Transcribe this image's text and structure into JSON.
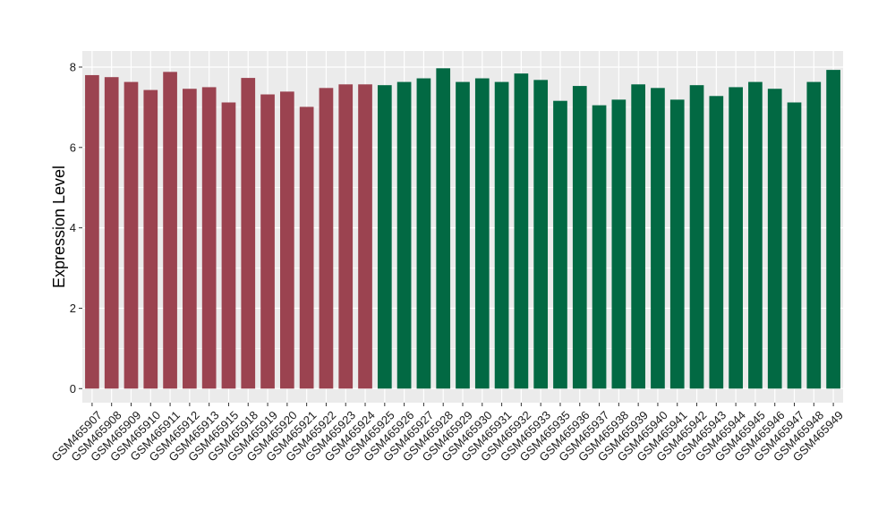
{
  "chart_data": {
    "type": "bar",
    "title": "",
    "xlabel": "",
    "ylabel": "Expression Level",
    "ylim": [
      -0.35,
      8.4
    ],
    "yticks": [
      0,
      2,
      4,
      6,
      8
    ],
    "yticks_labels": [
      "0",
      "2",
      "4",
      "6",
      "8"
    ],
    "grid": true,
    "panel_background": "#ebebeb",
    "categories": [
      "GSM465907",
      "GSM465908",
      "GSM465909",
      "GSM465910",
      "GSM465911",
      "GSM465912",
      "GSM465913",
      "GSM465915",
      "GSM465918",
      "GSM465919",
      "GSM465920",
      "GSM465921",
      "GSM465922",
      "GSM465923",
      "GSM465924",
      "GSM465925",
      "GSM465926",
      "GSM465927",
      "GSM465928",
      "GSM465929",
      "GSM465930",
      "GSM465931",
      "GSM465932",
      "GSM465933",
      "GSM465935",
      "GSM465936",
      "GSM465937",
      "GSM465938",
      "GSM465939",
      "GSM465940",
      "GSM465941",
      "GSM465942",
      "GSM465943",
      "GSM465944",
      "GSM465945",
      "GSM465946",
      "GSM465947",
      "GSM465948",
      "GSM465949"
    ],
    "values": [
      7.8,
      7.75,
      7.63,
      7.43,
      7.88,
      7.46,
      7.5,
      7.12,
      7.73,
      7.32,
      7.39,
      7.01,
      7.48,
      7.57,
      7.57,
      7.55,
      7.63,
      7.72,
      7.97,
      7.63,
      7.72,
      7.63,
      7.84,
      7.68,
      7.16,
      7.53,
      7.05,
      7.19,
      7.57,
      7.48,
      7.19,
      7.55,
      7.28,
      7.5,
      7.63,
      7.46,
      7.12,
      7.63,
      7.93
    ],
    "groups": [
      "red",
      "red",
      "red",
      "red",
      "red",
      "red",
      "red",
      "red",
      "red",
      "red",
      "red",
      "red",
      "red",
      "red",
      "red",
      "green",
      "green",
      "green",
      "green",
      "green",
      "green",
      "green",
      "green",
      "green",
      "green",
      "green",
      "green",
      "green",
      "green",
      "green",
      "green",
      "green",
      "green",
      "green",
      "green",
      "green",
      "green",
      "green",
      "green"
    ],
    "group_colors": {
      "red": "#9b4350",
      "green": "#026943"
    }
  }
}
